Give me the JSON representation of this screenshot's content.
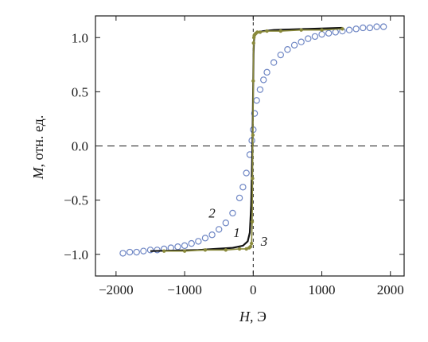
{
  "chart_data": {
    "type": "scatter",
    "xlabel_var": "H",
    "xlabel_unit": ", Э",
    "ylabel_var": "M",
    "ylabel_unit": ", отн. ед.",
    "xlim": [
      -2300,
      2200
    ],
    "ylim": [
      -1.2,
      1.2
    ],
    "xticks": [
      -2000,
      -1000,
      0,
      1000,
      2000
    ],
    "xtick_labels": [
      "−2000",
      "−1000",
      "0",
      "1000",
      "2000"
    ],
    "yticks": [
      -1.0,
      -0.5,
      0.0,
      0.5,
      1.0
    ],
    "ytick_labels": [
      "−1.0",
      "−0.5",
      "0.0",
      "0.5",
      "1.0"
    ],
    "reference_lines": {
      "horizontal_y": 0,
      "vertical_x": 0,
      "style": "dashed"
    },
    "colors": {
      "curve1": "#111111",
      "curve2_marker": "#6e86c4",
      "curve3": "#8a8a3c"
    },
    "series": [
      {
        "label": "1",
        "style": "black solid line",
        "x": [
          -1500,
          -800,
          -300,
          -150,
          -80,
          -50,
          -30,
          -20,
          -10,
          -5,
          0,
          5,
          10,
          20,
          30,
          50,
          80,
          150,
          300,
          800,
          1300
        ],
        "y": [
          -0.97,
          -0.96,
          -0.94,
          -0.92,
          -0.88,
          -0.8,
          -0.55,
          -0.25,
          0.05,
          0.35,
          0.6,
          0.85,
          0.97,
          1.02,
          1.03,
          1.04,
          1.05,
          1.06,
          1.07,
          1.08,
          1.09
        ]
      },
      {
        "label": "2",
        "style": "open circles",
        "x": [
          -1900,
          -1800,
          -1700,
          -1600,
          -1500,
          -1400,
          -1300,
          -1200,
          -1100,
          -1000,
          -900,
          -800,
          -700,
          -600,
          -500,
          -400,
          -300,
          -200,
          -150,
          -100,
          -50,
          -20,
          0,
          20,
          50,
          100,
          150,
          200,
          300,
          400,
          500,
          600,
          700,
          800,
          900,
          1000,
          1100,
          1200,
          1300,
          1400,
          1500,
          1600,
          1700,
          1800,
          1900
        ],
        "y": [
          -0.99,
          -0.98,
          -0.98,
          -0.97,
          -0.96,
          -0.96,
          -0.95,
          -0.94,
          -0.93,
          -0.92,
          -0.9,
          -0.88,
          -0.85,
          -0.82,
          -0.77,
          -0.71,
          -0.62,
          -0.48,
          -0.38,
          -0.25,
          -0.08,
          0.05,
          0.15,
          0.3,
          0.42,
          0.52,
          0.61,
          0.68,
          0.77,
          0.84,
          0.89,
          0.93,
          0.96,
          0.99,
          1.01,
          1.03,
          1.04,
          1.05,
          1.06,
          1.07,
          1.08,
          1.09,
          1.09,
          1.1,
          1.1
        ]
      },
      {
        "label": "3",
        "style": "olive line with dot markers",
        "x": [
          -1300,
          -1000,
          -700,
          -400,
          -200,
          -100,
          -60,
          -40,
          -25,
          -15,
          -10,
          -5,
          0,
          5,
          10,
          15,
          25,
          40,
          60,
          100,
          200,
          400,
          700,
          1000,
          1300
        ],
        "y": [
          -0.97,
          -0.97,
          -0.96,
          -0.96,
          -0.95,
          -0.95,
          -0.94,
          -0.93,
          -0.9,
          -0.7,
          -0.3,
          0.1,
          0.6,
          0.95,
          1.0,
          1.02,
          1.03,
          1.04,
          1.05,
          1.05,
          1.06,
          1.06,
          1.07,
          1.07,
          1.08
        ]
      }
    ]
  }
}
